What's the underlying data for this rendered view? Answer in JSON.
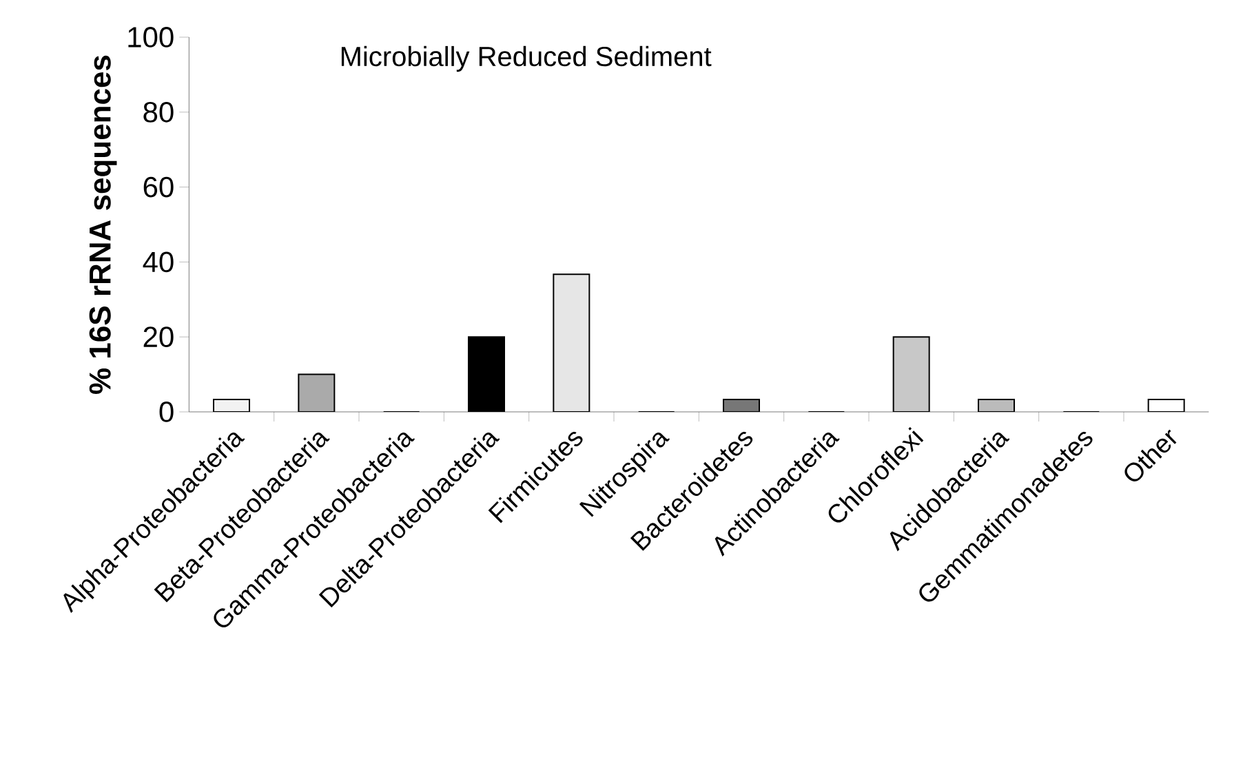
{
  "chart_data": {
    "type": "bar",
    "title": "Microbially Reduced Sediment",
    "ylabel": "% 16S rRNA sequences",
    "categories": [
      "Alpha-Proteobacteria",
      "Beta-Proteobacteria",
      "Gamma-Proteobacteria",
      "Delta-Proteobacteria",
      "Firmicutes",
      "Nitrospira",
      "Bacteroidetes",
      "Actinobacteria",
      "Chloroflexi",
      "Acidobacteria",
      "Gemmatimonadetes",
      "Other"
    ],
    "values": [
      3.3,
      10,
      0,
      20,
      36.7,
      0,
      3.3,
      0,
      20,
      3.3,
      0,
      3.3
    ],
    "colors": [
      "#f2f2f2",
      "#aaaaaa",
      "#ffffff",
      "#000000",
      "#e6e6e6",
      "#ffffff",
      "#777777",
      "#ffffff",
      "#c8c8c8",
      "#bbbbbb",
      "#ffffff",
      "#ffffff"
    ],
    "ylim": [
      0,
      100
    ],
    "yticks": [
      0,
      20,
      40,
      60,
      80,
      100
    ]
  }
}
